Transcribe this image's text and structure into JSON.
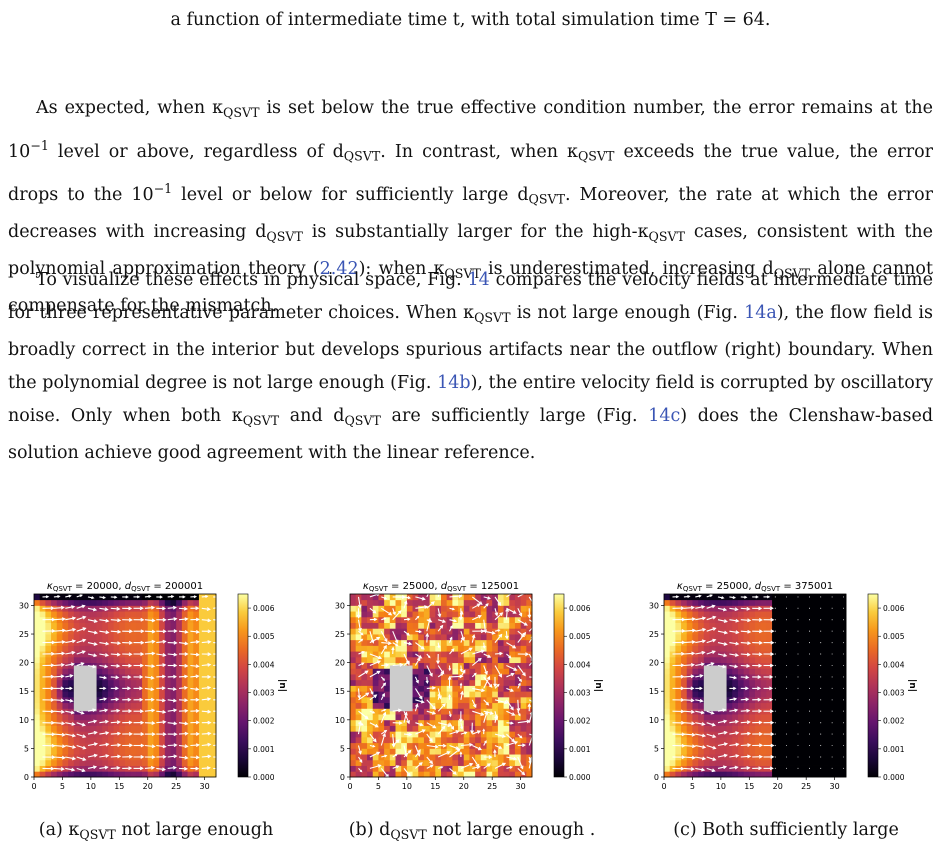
{
  "caption_tail": "a function of intermediate time t, with total simulation time T = 64.",
  "paragraph1": {
    "s1": "As expected, when κ",
    "s2": " is set below the true effective condition number, the error remains at the 10",
    "s3": " level or above, regardless of d",
    "s4": ". In contrast, when κ",
    "s5": " exceeds the true value, the error drops to the 10",
    "s6": " level or below for sufficiently large d",
    "s7": ". Moreover, the rate at which the error decreases with increasing d",
    "s8": " is substantially larger for the high-κ",
    "s9": " cases, consistent with the polynomial approximation theory (",
    "eqref": "2.42",
    "s10": "): when κ",
    "s11": " is underestimated, increasing d",
    "s12": " alone cannot compensate for the mismatch."
  },
  "paragraph2": {
    "s1": "To visualize these effects in physical space, Fig. ",
    "ref14": "14",
    "s2": " compares the velocity fields at intermediate time for three representative parameter choices. When κ",
    "s3": " is not large enough (Fig. ",
    "ref14a": "14a",
    "s4": "), the flow field is broadly correct in the interior but develops spurious artifacts near the outflow (right) boundary. When the polynomial degree is not large enough (Fig. ",
    "ref14b": "14b",
    "s5": "), the entire velocity field is corrupted by oscillatory noise. Only when both κ",
    "s6": " and d",
    "s7": " are sufficiently large (Fig. ",
    "ref14c": "14c",
    "s8": ") does the Clenshaw-based solution achieve good agreement with the linear reference."
  },
  "symbols": {
    "qsvt": "QSVT",
    "exp": "−1"
  },
  "panels": [
    {
      "id": "a",
      "kappa": "20000",
      "d": "200001",
      "caption": "(a) κ",
      "caption_tail": " not large enough",
      "mode": "kappa_low"
    },
    {
      "id": "b",
      "kappa": "25000",
      "d": "125001",
      "caption": "(b) d",
      "caption_tail": " not large enough .",
      "mode": "noisy"
    },
    {
      "id": "c",
      "kappa": "25000",
      "d": "375001",
      "caption": "(c) Both sufficiently large",
      "caption_tail": "",
      "mode": "good"
    }
  ],
  "axes": {
    "x_ticks": [
      "0",
      "5",
      "10",
      "15",
      "20",
      "25",
      "30"
    ],
    "y_ticks": [
      "0",
      "5",
      "10",
      "15",
      "20",
      "25",
      "30"
    ],
    "x_range": [
      0,
      32
    ],
    "y_range": [
      0,
      32
    ]
  },
  "colorbar": {
    "label": "|u|",
    "ticks": [
      "0.000",
      "0.001",
      "0.002",
      "0.003",
      "0.004",
      "0.005",
      "0.006"
    ],
    "range": [
      0,
      0.0065
    ],
    "colormap": "inferno"
  },
  "colors": {
    "link": "#3a55b4",
    "obstacle": "#cccccc",
    "arrows": "#ffffff"
  }
}
